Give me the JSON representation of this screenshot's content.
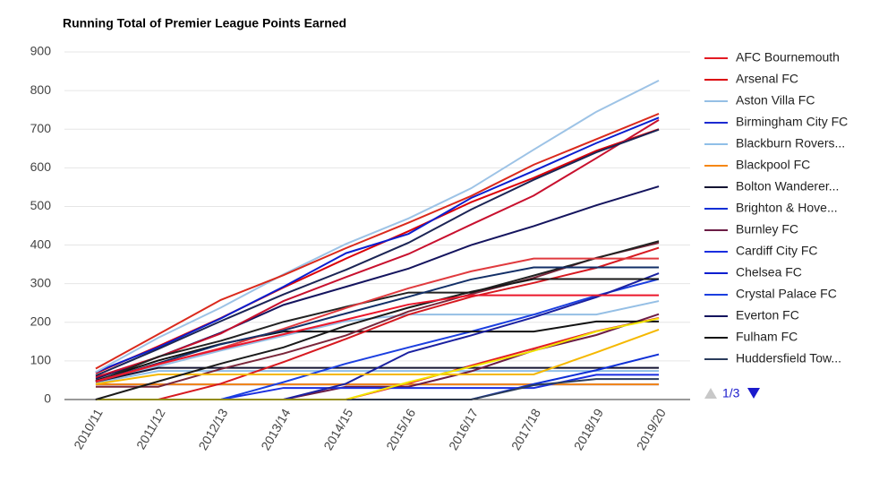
{
  "chart_data": {
    "type": "line",
    "title": "Running Total of Premier League Points Earned",
    "categories": [
      "2010/11",
      "2011/12",
      "2012/13",
      "2013/14",
      "2014/15",
      "2015/16",
      "2016/17",
      "2017/18",
      "2018/19",
      "2019/20"
    ],
    "ylim": [
      0,
      900
    ],
    "yticks": [
      0,
      100,
      200,
      300,
      400,
      500,
      600,
      700,
      800,
      900
    ],
    "grid": true,
    "legend_page": "1/3",
    "series": [
      {
        "name": "AFC Bournemouth",
        "color": "#e31b23",
        "values": [
          0,
          0,
          0,
          0,
          0,
          42,
          88,
          132,
          177,
          211
        ]
      },
      {
        "name": "Arsenal FC",
        "color": "#db0007",
        "values": [
          68,
          138,
          211,
          290,
          365,
          436,
          511,
          574,
          644,
          700
        ]
      },
      {
        "name": "Aston Villa FC",
        "color": "#95bfe5",
        "values": [
          48,
          86,
          127,
          165,
          203,
          220,
          220,
          220,
          220,
          255
        ]
      },
      {
        "name": "Birmingham City FC",
        "color": "#1c2bd1",
        "values": [
          39,
          39,
          39,
          39,
          39,
          39,
          39,
          39,
          39,
          39
        ]
      },
      {
        "name": "Blackburn Rovers...",
        "color": "#8fbfe8",
        "values": [
          43,
          74,
          74,
          74,
          74,
          74,
          74,
          74,
          74,
          74
        ]
      },
      {
        "name": "Blackpool FC",
        "color": "#f68712",
        "values": [
          39,
          39,
          39,
          39,
          39,
          39,
          39,
          39,
          39,
          39
        ]
      },
      {
        "name": "Bolton Wanderer...",
        "color": "#141432",
        "values": [
          46,
          82,
          82,
          82,
          82,
          82,
          82,
          82,
          82,
          82
        ]
      },
      {
        "name": "Brighton & Hove...",
        "color": "#0e2fd6",
        "values": [
          0,
          0,
          0,
          0,
          0,
          0,
          0,
          40,
          76,
          117
        ]
      },
      {
        "name": "Burnley FC",
        "color": "#6c1d45",
        "values": [
          0,
          0,
          0,
          0,
          33,
          33,
          73,
          127,
          167,
          221
        ]
      },
      {
        "name": "Cardiff City FC",
        "color": "#1a2ee0",
        "values": [
          0,
          0,
          0,
          30,
          30,
          30,
          30,
          30,
          64,
          64
        ]
      },
      {
        "name": "Chelsea FC",
        "color": "#0a1ecf",
        "values": [
          71,
          135,
          210,
          292,
          379,
          429,
          522,
          592,
          664,
          730
        ]
      },
      {
        "name": "Crystal Palace FC",
        "color": "#1b3fe0",
        "values": [
          0,
          0,
          0,
          45,
          93,
          135,
          176,
          220,
          269,
          312
        ]
      },
      {
        "name": "Everton FC",
        "color": "#14145e",
        "values": [
          54,
          110,
          173,
          245,
          292,
          339,
          400,
          449,
          503,
          552
        ]
      },
      {
        "name": "Fulham FC",
        "color": "#111111",
        "values": [
          49,
          101,
          144,
          176,
          176,
          176,
          176,
          176,
          202,
          202
        ]
      },
      {
        "name": "Huddersfield Tow...",
        "color": "#2a3c5c",
        "values": [
          0,
          0,
          0,
          0,
          0,
          0,
          0,
          37,
          53,
          53
        ]
      },
      {
        "color": "#9dc3e6",
        "values": [
          71,
          160,
          238,
          324,
          403,
          469,
          547,
          647,
          745,
          826
        ]
      },
      {
        "color": "#da291c",
        "values": [
          80,
          169,
          258,
          322,
          392,
          458,
          527,
          608,
          674,
          740
        ]
      },
      {
        "color": "#c8102e",
        "values": [
          58,
          110,
          171,
          255,
          317,
          377,
          453,
          528,
          625,
          724
        ]
      },
      {
        "color": "#1c2555",
        "values": [
          62,
          131,
          203,
          272,
          336,
          406,
          492,
          569,
          640,
          699
        ]
      },
      {
        "color": "#1a20a0",
        "values": [
          0,
          0,
          0,
          0,
          41,
          122,
          166,
          213,
          265,
          327
        ]
      },
      {
        "color": "#7a263a",
        "values": [
          33,
          33,
          79,
          119,
          166,
          228,
          273,
          315,
          367,
          406
        ]
      },
      {
        "color": "#d71920",
        "values": [
          0,
          0,
          41,
          97,
          157,
          220,
          266,
          302,
          341,
          393
        ]
      },
      {
        "color": "#222222",
        "values": [
          46,
          111,
          152,
          201,
          240,
          277,
          277,
          321,
          366,
          410
        ]
      },
      {
        "color": "#f5b800",
        "values": [
          40,
          65,
          65,
          65,
          65,
          65,
          65,
          65,
          122,
          181
        ]
      },
      {
        "color": "#f2e500",
        "values": [
          0,
          0,
          0,
          0,
          0,
          45,
          85,
          126,
          176,
          210
        ]
      },
      {
        "color": "#e03a3e",
        "values": [
          46,
          91,
          133,
          183,
          237,
          288,
          332,
          365,
          365,
          365
        ]
      },
      {
        "color": "#122f67",
        "values": [
          47,
          94,
          143,
          179,
          223,
          266,
          311,
          342,
          342,
          342
        ]
      },
      {
        "color": "#1a1a1a",
        "values": [
          0,
          47,
          93,
          135,
          191,
          238,
          279,
          312,
          312,
          312
        ]
      },
      {
        "color": "#eb172b",
        "values": [
          47,
          92,
          131,
          169,
          207,
          246,
          270,
          270,
          270,
          270
        ]
      }
    ]
  }
}
